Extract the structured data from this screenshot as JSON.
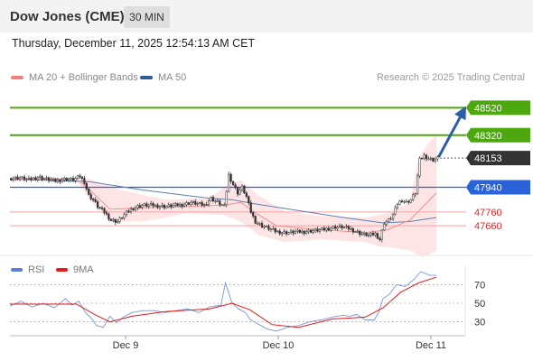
{
  "header": {
    "title": "Dow Jones (CME)",
    "timeframe": "30 MIN"
  },
  "datetime": "Thursday, December 11, 2025 12:54:13 AM CET",
  "legend": {
    "ma_bb": {
      "label": "MA 20 + Bollinger Bands",
      "color": "#f08080"
    },
    "ma50": {
      "label": "MA 50",
      "color": "#2e5c99"
    }
  },
  "credit": "Research © 2025 Trading Central",
  "rsi_legend": {
    "rsi": {
      "label": "RSI",
      "color": "#5b7fd4"
    },
    "ma9": {
      "label": "9MA",
      "color": "#e11d1d"
    }
  },
  "chart_data": [
    {
      "type": "candlestick",
      "x_ticks": [
        "Dec 9",
        "Dec 10",
        "Dec 11"
      ],
      "ylim": [
        47450,
        48700
      ],
      "levels": [
        {
          "value": 48520,
          "label": "48520",
          "kind": "resistance",
          "color": "#4ca80e"
        },
        {
          "value": 48320,
          "label": "48320",
          "kind": "resistance",
          "color": "#4ca80e"
        },
        {
          "value": 48153,
          "label": "48153",
          "kind": "last",
          "color": "#333333"
        },
        {
          "value": 47940,
          "label": "47940",
          "kind": "pivot",
          "color": "#2962d9"
        },
        {
          "value": 47760,
          "label": "47760",
          "kind": "support",
          "color": "#d42a2a"
        },
        {
          "value": 47660,
          "label": "47660",
          "kind": "support",
          "color": "#d42a2a"
        }
      ],
      "close_path": [
        [
          0,
          48005
        ],
        [
          4,
          48010
        ],
        [
          8,
          47995
        ],
        [
          12,
          48015
        ],
        [
          16,
          48000
        ],
        [
          20,
          47985
        ],
        [
          24,
          48000
        ],
        [
          28,
          47995
        ],
        [
          31,
          48020
        ],
        [
          33,
          47980
        ],
        [
          35,
          47880
        ],
        [
          37,
          47850
        ],
        [
          39,
          47800
        ],
        [
          42,
          47760
        ],
        [
          45,
          47700
        ],
        [
          48,
          47690
        ],
        [
          51,
          47740
        ],
        [
          54,
          47780
        ],
        [
          57,
          47800
        ],
        [
          60,
          47810
        ],
        [
          63,
          47810
        ],
        [
          66,
          47805
        ],
        [
          69,
          47800
        ],
        [
          72,
          47805
        ],
        [
          75,
          47810
        ],
        [
          78,
          47815
        ],
        [
          81,
          47830
        ],
        [
          84,
          47820
        ],
        [
          87,
          47810
        ],
        [
          90,
          47860
        ],
        [
          92,
          47840
        ],
        [
          94,
          47820
        ],
        [
          96,
          47800
        ],
        [
          98,
          48030
        ],
        [
          100,
          47960
        ],
        [
          102,
          47900
        ],
        [
          104,
          47940
        ],
        [
          106,
          47870
        ],
        [
          108,
          47760
        ],
        [
          110,
          47690
        ],
        [
          113,
          47660
        ],
        [
          116,
          47640
        ],
        [
          119,
          47620
        ],
        [
          122,
          47610
        ],
        [
          125,
          47610
        ],
        [
          128,
          47615
        ],
        [
          131,
          47615
        ],
        [
          134,
          47620
        ],
        [
          137,
          47625
        ],
        [
          140,
          47630
        ],
        [
          143,
          47640
        ],
        [
          146,
          47650
        ],
        [
          149,
          47650
        ],
        [
          152,
          47640
        ],
        [
          155,
          47620
        ],
        [
          158,
          47600
        ],
        [
          161,
          47590
        ],
        [
          164,
          47600
        ],
        [
          166,
          47560
        ],
        [
          168,
          47680
        ],
        [
          170,
          47700
        ],
        [
          172,
          47740
        ],
        [
          174,
          47820
        ],
        [
          176,
          47850
        ],
        [
          178,
          47830
        ],
        [
          180,
          47850
        ],
        [
          182,
          47900
        ],
        [
          184,
          48140
        ],
        [
          186,
          48170
        ],
        [
          188,
          48150
        ],
        [
          190,
          48140
        ],
        [
          192,
          48153
        ]
      ],
      "ma20_path": [
        [
          0,
          48000
        ],
        [
          30,
          48000
        ],
        [
          36,
          47920
        ],
        [
          45,
          47780
        ],
        [
          60,
          47790
        ],
        [
          80,
          47800
        ],
        [
          96,
          47810
        ],
        [
          104,
          47830
        ],
        [
          110,
          47760
        ],
        [
          120,
          47660
        ],
        [
          140,
          47630
        ],
        [
          160,
          47610
        ],
        [
          170,
          47630
        ],
        [
          180,
          47700
        ],
        [
          186,
          47800
        ],
        [
          192,
          47900
        ]
      ],
      "bb_upper_path": [
        [
          0,
          48010
        ],
        [
          30,
          48010
        ],
        [
          36,
          48000
        ],
        [
          50,
          47920
        ],
        [
          70,
          47850
        ],
        [
          90,
          47860
        ],
        [
          98,
          47960
        ],
        [
          104,
          47990
        ],
        [
          112,
          47880
        ],
        [
          124,
          47760
        ],
        [
          140,
          47730
        ],
        [
          160,
          47720
        ],
        [
          170,
          47750
        ],
        [
          180,
          47830
        ],
        [
          184,
          48160
        ],
        [
          188,
          48250
        ],
        [
          192,
          48330
        ]
      ],
      "bb_lower_path": [
        [
          0,
          47990
        ],
        [
          30,
          47990
        ],
        [
          36,
          47850
        ],
        [
          45,
          47690
        ],
        [
          60,
          47690
        ],
        [
          80,
          47750
        ],
        [
          96,
          47740
        ],
        [
          104,
          47690
        ],
        [
          112,
          47590
        ],
        [
          124,
          47540
        ],
        [
          140,
          47560
        ],
        [
          160,
          47540
        ],
        [
          166,
          47510
        ],
        [
          172,
          47500
        ],
        [
          180,
          47480
        ],
        [
          186,
          47430
        ],
        [
          192,
          47480
        ]
      ],
      "ma50_path": [
        [
          0,
          48000
        ],
        [
          36,
          47980
        ],
        [
          60,
          47920
        ],
        [
          90,
          47860
        ],
        [
          100,
          47850
        ],
        [
          110,
          47820
        ],
        [
          130,
          47770
        ],
        [
          150,
          47720
        ],
        [
          168,
          47680
        ],
        [
          180,
          47690
        ],
        [
          192,
          47720
        ]
      ],
      "projection": {
        "from": [
          48160,
          193
        ],
        "to": [
          48520,
          205
        ]
      }
    },
    {
      "type": "line",
      "name": "RSI",
      "ylim": [
        15,
        85
      ],
      "y_ticks": [
        70,
        50,
        30
      ],
      "dotted_levels": [
        70,
        50,
        30
      ],
      "rsi_path": [
        [
          0,
          47
        ],
        [
          5,
          52
        ],
        [
          10,
          46
        ],
        [
          15,
          50
        ],
        [
          20,
          45
        ],
        [
          25,
          55
        ],
        [
          28,
          48
        ],
        [
          31,
          52
        ],
        [
          34,
          40
        ],
        [
          37,
          33
        ],
        [
          39,
          26
        ],
        [
          42,
          24
        ],
        [
          45,
          36
        ],
        [
          48,
          29
        ],
        [
          51,
          35
        ],
        [
          55,
          40
        ],
        [
          60,
          42
        ],
        [
          65,
          42
        ],
        [
          70,
          40
        ],
        [
          75,
          42
        ],
        [
          80,
          44
        ],
        [
          85,
          40
        ],
        [
          90,
          46
        ],
        [
          95,
          48
        ],
        [
          97,
          72
        ],
        [
          100,
          50
        ],
        [
          103,
          44
        ],
        [
          106,
          40
        ],
        [
          108,
          33
        ],
        [
          110,
          30
        ],
        [
          113,
          26
        ],
        [
          116,
          22
        ],
        [
          120,
          20
        ],
        [
          125,
          24
        ],
        [
          130,
          26
        ],
        [
          135,
          30
        ],
        [
          140,
          32
        ],
        [
          145,
          35
        ],
        [
          150,
          37
        ],
        [
          153,
          36
        ],
        [
          156,
          38
        ],
        [
          160,
          32
        ],
        [
          164,
          32
        ],
        [
          166,
          40
        ],
        [
          168,
          55
        ],
        [
          171,
          60
        ],
        [
          174,
          70
        ],
        [
          178,
          68
        ],
        [
          182,
          76
        ],
        [
          185,
          84
        ],
        [
          189,
          80
        ],
        [
          192,
          80
        ]
      ],
      "ma9_path": [
        [
          0,
          49
        ],
        [
          20,
          49
        ],
        [
          30,
          49
        ],
        [
          38,
          38
        ],
        [
          45,
          30
        ],
        [
          55,
          36
        ],
        [
          70,
          41
        ],
        [
          90,
          44
        ],
        [
          100,
          50
        ],
        [
          108,
          43
        ],
        [
          118,
          27
        ],
        [
          130,
          24
        ],
        [
          145,
          33
        ],
        [
          160,
          35
        ],
        [
          168,
          45
        ],
        [
          176,
          62
        ],
        [
          184,
          72
        ],
        [
          192,
          78
        ]
      ]
    }
  ]
}
